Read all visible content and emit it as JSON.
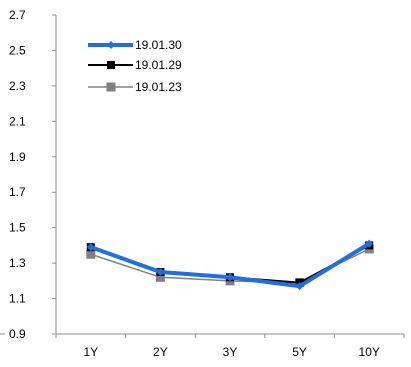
{
  "chart_data": {
    "type": "line",
    "title": "",
    "xlabel": "",
    "ylabel": "",
    "categories": [
      "1Y",
      "2Y",
      "3Y",
      "5Y",
      "10Y"
    ],
    "ylim": [
      0.9,
      2.7
    ],
    "yticks": [
      "0.9",
      "1.1",
      "1.3",
      "1.5",
      "1.7",
      "1.9",
      "2.1",
      "2.3",
      "2.5",
      "2.7"
    ],
    "grid": false,
    "legend_position": "top-left",
    "series": [
      {
        "name": "19.01.30",
        "values": [
          1.39,
          1.25,
          1.22,
          1.17,
          1.41
        ],
        "color": "#1f6fe0",
        "marker": "diamond"
      },
      {
        "name": "19.01.29",
        "values": [
          1.39,
          1.25,
          1.22,
          1.19,
          1.4
        ],
        "color": "#000000",
        "marker": "square"
      },
      {
        "name": "19.01.23",
        "values": [
          1.35,
          1.22,
          1.2,
          1.19,
          1.38
        ],
        "color": "#808080",
        "marker": "square"
      }
    ]
  }
}
